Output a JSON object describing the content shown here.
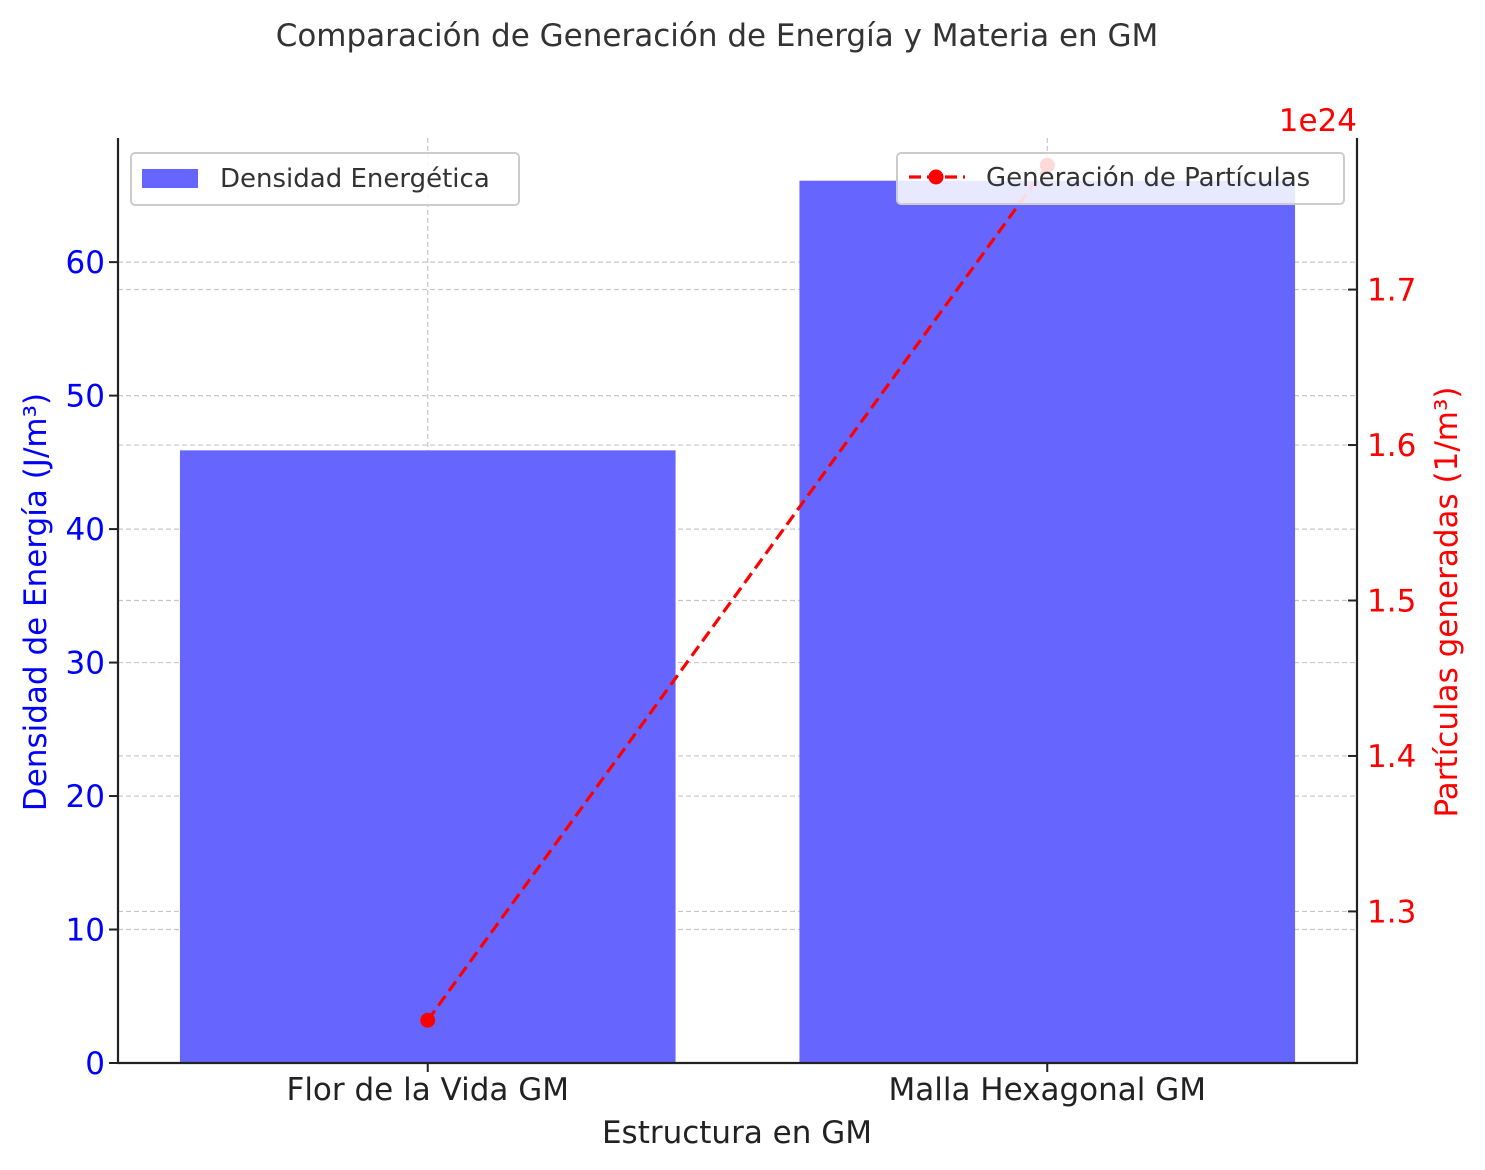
{
  "chart_data": {
    "type": "bar",
    "title": "Comparación de Generación de Energía y Materia en GM",
    "xlabel": "Estructura en GM",
    "ylabel": "Densidad de Energía (J/m³)",
    "y2label": "Partículas generadas (1/m³)",
    "y2_offset_label": "1e24",
    "categories": [
      "Flor de la Vida GM",
      "Malla Hexagonal GM"
    ],
    "series": [
      {
        "name": "Densidad Energética",
        "type": "bar",
        "axis": "left",
        "color": "#6666ff",
        "values": [
          45.9,
          66.1
        ]
      },
      {
        "name": "Generación de Partículas",
        "type": "line",
        "line_style": "dashed",
        "marker": "circle",
        "axis": "right",
        "color": "#ff0000",
        "values": [
          1.23e+24,
          1.78e+24
        ]
      }
    ],
    "ylim": [
      0,
      69.3
    ],
    "y_ticks": [
      0,
      10,
      20,
      30,
      40,
      50,
      60
    ],
    "y2lim": [
      1.2025e+24,
      1.7975e+24
    ],
    "y2_ticks": [
      1.3,
      1.4,
      1.5,
      1.6,
      1.7
    ],
    "y2_scale": 1e+24,
    "grid": true,
    "legends": [
      {
        "series": 0,
        "placement": "upper left"
      },
      {
        "series": 1,
        "placement": "upper right"
      }
    ],
    "colors": {
      "left_axis": "#0000ff",
      "right_axis": "#ff0000",
      "text": "#333333",
      "grid": "#b0b0b0"
    }
  }
}
